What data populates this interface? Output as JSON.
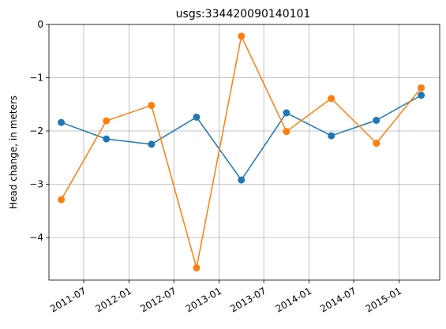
{
  "chart_data": {
    "type": "line",
    "title": "usgs:334420090140101",
    "xlabel": "",
    "ylabel": "Head change, in meters",
    "x_type": "date",
    "xlim": [
      "2011-02-10",
      "2015-06-15"
    ],
    "ylim": [
      -4.8,
      0
    ],
    "y_ticks": [
      0,
      -1,
      -2,
      -3,
      -4
    ],
    "y_tick_labels": [
      "0",
      "−1",
      "−2",
      "−3",
      "−4"
    ],
    "x_ticks": [
      "2011-07-01",
      "2012-01-01",
      "2012-07-01",
      "2013-01-01",
      "2013-07-01",
      "2014-01-01",
      "2014-07-01",
      "2015-01-01"
    ],
    "x_tick_labels": [
      "2011-07",
      "2012-01",
      "2012-07",
      "2013-01",
      "2013-07",
      "2014-01",
      "2014-07",
      "2015-01"
    ],
    "grid": true,
    "x": [
      "2011-04-01",
      "2011-10-01",
      "2012-04-01",
      "2012-10-01",
      "2013-04-01",
      "2013-10-01",
      "2014-04-01",
      "2014-10-01",
      "2015-04-01"
    ],
    "series": [
      {
        "color": "#1f77b4",
        "values": [
          -1.84,
          -2.15,
          -2.25,
          -1.74,
          -2.92,
          -1.66,
          -2.09,
          -1.8,
          -1.33
        ]
      },
      {
        "color": "#ff7f0e",
        "values": [
          -3.29,
          -1.81,
          -1.52,
          -4.57,
          -0.22,
          -2.01,
          -1.39,
          -2.23,
          -1.19
        ]
      }
    ]
  }
}
